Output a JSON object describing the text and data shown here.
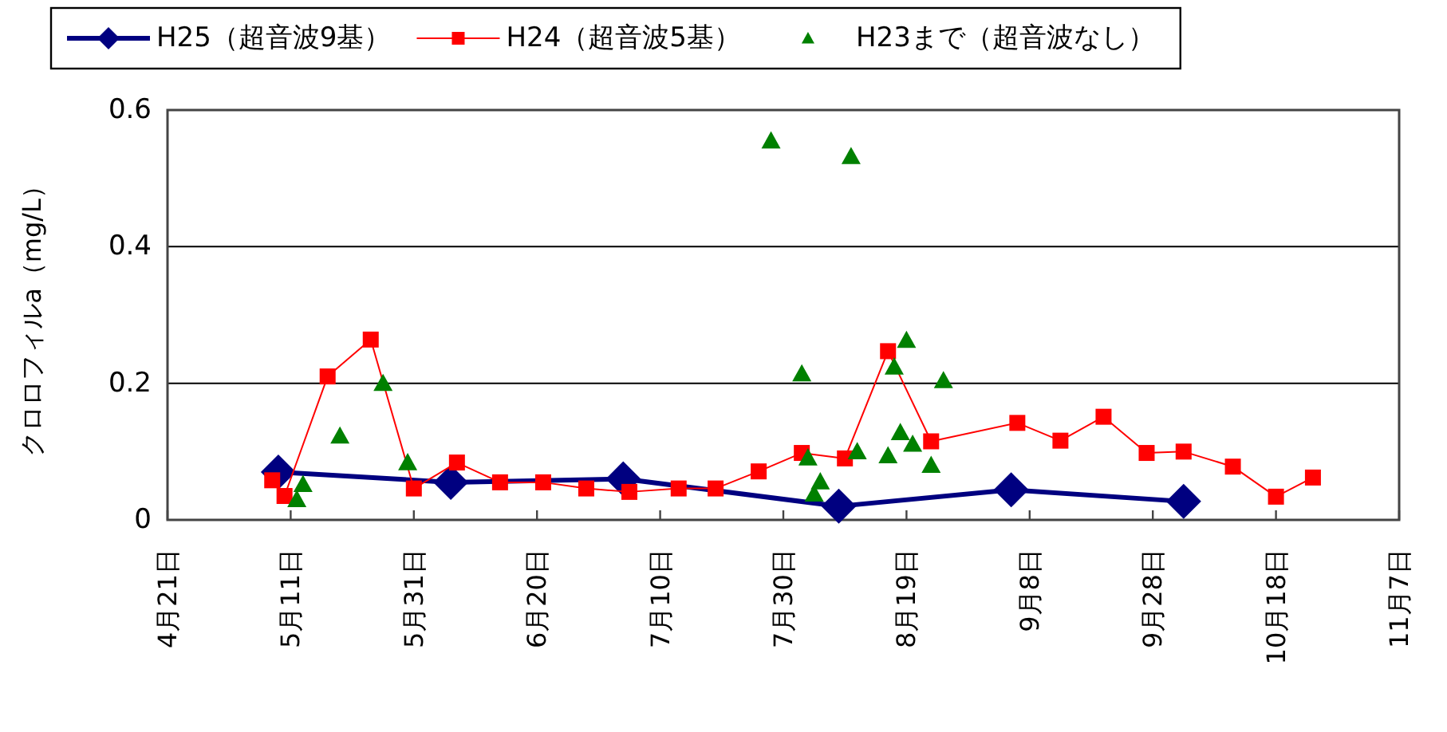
{
  "chart_data": {
    "type": "line",
    "ylabel": "クロロフィルa（mg/L）",
    "xlim": [
      "--04-21",
      "--11-07"
    ],
    "xticks": [
      {
        "value": "--04-21",
        "label": "4月21日"
      },
      {
        "value": "--05-11",
        "label": "5月11日"
      },
      {
        "value": "--05-31",
        "label": "5月31日"
      },
      {
        "value": "--06-20",
        "label": "6月20日"
      },
      {
        "value": "--07-10",
        "label": "7月10日"
      },
      {
        "value": "--07-30",
        "label": "7月30日"
      },
      {
        "value": "--08-19",
        "label": "8月19日"
      },
      {
        "value": "--09-08",
        "label": "9月8日"
      },
      {
        "value": "--09-28",
        "label": "9月28日"
      },
      {
        "value": "--10-18",
        "label": "10月18日"
      },
      {
        "value": "--11-07",
        "label": "11月7日"
      }
    ],
    "ylim": [
      0,
      0.6
    ],
    "yticks": [
      0,
      0.2,
      0.4,
      0.6
    ],
    "grid": "y",
    "legend": "top",
    "series": [
      {
        "name": "H25（超音波9基）",
        "type": "line",
        "marker": "diamond",
        "color": "#000080",
        "x": [
          "--05-09",
          "--06-06",
          "--07-04",
          "--08-08",
          "--09-05",
          "--10-03"
        ],
        "values": [
          0.07,
          0.055,
          0.06,
          0.02,
          0.044,
          0.027
        ]
      },
      {
        "name": "H24（超音波5基）",
        "type": "line",
        "marker": "square",
        "color": "#ff0000",
        "x": [
          "--05-08",
          "--05-10",
          "--05-17",
          "--05-24",
          "--05-31",
          "--06-07",
          "--06-14",
          "--06-21",
          "--06-28",
          "--07-05",
          "--07-13",
          "--07-19",
          "--07-26",
          "--08-02",
          "--08-09",
          "--08-16",
          "--08-23",
          "--09-06",
          "--09-13",
          "--09-20",
          "--09-27",
          "--10-03",
          "--10-11",
          "--10-18",
          "--10-24"
        ],
        "values": [
          0.058,
          0.035,
          0.21,
          0.264,
          0.046,
          0.084,
          0.055,
          0.055,
          0.046,
          0.041,
          0.046,
          0.046,
          0.071,
          0.098,
          0.09,
          0.247,
          0.115,
          0.142,
          0.116,
          0.151,
          0.098,
          0.1,
          0.078,
          0.034,
          0.062
        ]
      },
      {
        "name": "H23まで（超音波なし）",
        "type": "scatter",
        "marker": "triangle",
        "color": "#008000",
        "x": [
          "--05-12",
          "--05-13",
          "--05-19",
          "--05-26",
          "--05-30",
          "--07-28",
          "--08-02",
          "--08-03",
          "--08-04",
          "--08-05",
          "--08-10",
          "--08-11",
          "--08-16",
          "--08-17",
          "--08-18",
          "--08-19",
          "--08-20",
          "--08-23",
          "--08-25"
        ],
        "values": [
          0.03,
          0.052,
          0.123,
          0.2,
          0.084,
          0.555,
          0.214,
          0.091,
          0.038,
          0.056,
          0.532,
          0.1,
          0.094,
          0.224,
          0.128,
          0.263,
          0.111,
          0.08,
          0.204
        ]
      }
    ]
  }
}
